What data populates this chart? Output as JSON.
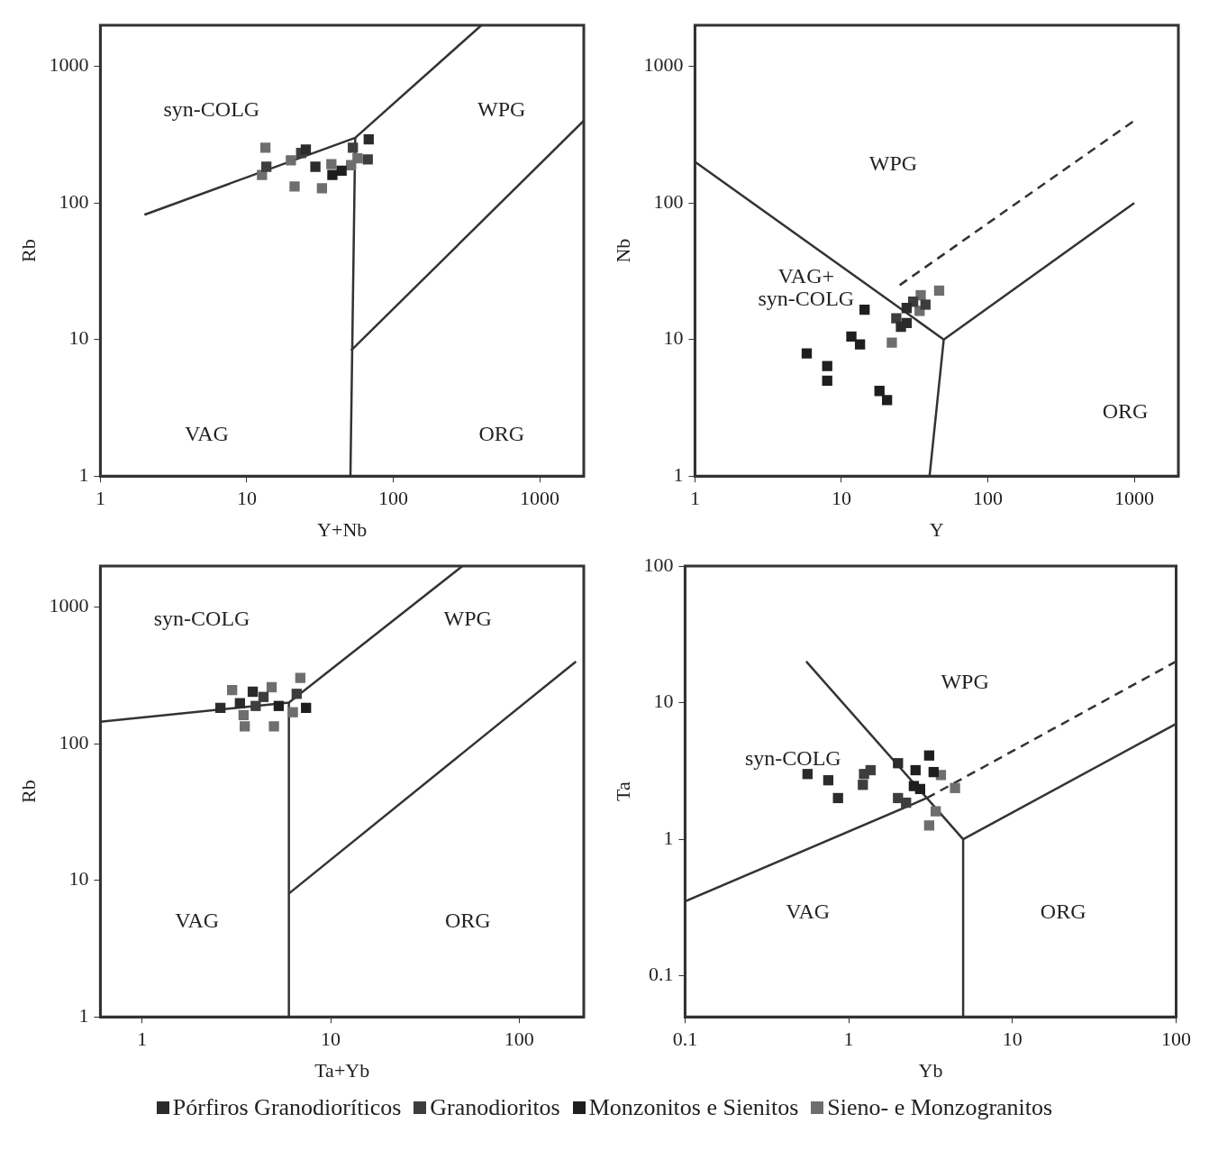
{
  "chart_data": [
    {
      "type": "scatter",
      "xlabel": "Y+Nb",
      "ylabel": "Rb",
      "log": "xy",
      "grid": false,
      "xlim": [
        1,
        2000
      ],
      "ylim": [
        1,
        2000
      ],
      "xticks": [
        1,
        10,
        100,
        1000
      ],
      "yticks": [
        1,
        10,
        100,
        1000
      ],
      "annotations": [
        "syn-COLG",
        "WPG",
        "VAG",
        "ORG"
      ],
      "series": [
        {
          "color": "#2b2b2b",
          "marker": "square",
          "x": [
            25.3,
            29.4,
            68
          ],
          "values": [
            246,
            184,
            292
          ]
        },
        {
          "color": "#3d3d3d",
          "marker": "square",
          "x": [
            13.6,
            23.5,
            53,
            67
          ],
          "values": [
            184,
            232,
            254,
            208
          ]
        },
        {
          "color": "#1e1e1e",
          "marker": "square",
          "x": [
            38.4,
            44.4
          ],
          "values": [
            160,
            172
          ]
        },
        {
          "color": "#6e6e6e",
          "marker": "square",
          "x": [
            13.4,
            12.7,
            20,
            21.2,
            32.6,
            37.8,
            51.5,
            57
          ],
          "values": [
            254,
            160,
            205,
            132,
            128,
            192,
            189,
            212
          ]
        },
        {
          "type": "line",
          "color": "#333333",
          "x": [
            2,
            55,
            400
          ],
          "values": [
            82,
            300,
            2000
          ]
        },
        {
          "type": "line",
          "color": "#333333",
          "x": [
            51,
            55
          ],
          "values": [
            1,
            300
          ]
        },
        {
          "type": "line",
          "color": "#333333",
          "x": [
            51.5,
            2000
          ],
          "values": [
            8.3,
            400
          ]
        }
      ]
    },
    {
      "type": "scatter",
      "xlabel": "Y",
      "ylabel": "Nb",
      "log": "xy",
      "grid": false,
      "xlim": [
        1,
        2000
      ],
      "ylim": [
        1,
        2000
      ],
      "xticks": [
        1,
        10,
        100,
        1000
      ],
      "yticks": [
        1,
        10,
        100,
        1000
      ],
      "annotations": [
        "WPG",
        "VAG+",
        "syn-COLG",
        "ORG"
      ],
      "series": [
        {
          "color": "#2b2b2b",
          "marker": "square",
          "x": [
            25.5,
            27.9,
            27.9
          ],
          "values": [
            12.4,
            17,
            13.2
          ]
        },
        {
          "color": "#3d3d3d",
          "marker": "square",
          "x": [
            23.7,
            30.9,
            37.5
          ],
          "values": [
            14.3,
            18.9,
            18
          ]
        },
        {
          "color": "#1e1e1e",
          "marker": "square",
          "x": [
            14.4,
            11.7,
            13.4,
            5.8,
            8.0,
            8.0,
            18.2,
            20.5
          ],
          "values": [
            16.5,
            10.5,
            9.2,
            7.9,
            6.4,
            5.0,
            4.2,
            3.6
          ]
        },
        {
          "color": "#6e6e6e",
          "marker": "square",
          "x": [
            22.1,
            34.8,
            34.2,
            46.5
          ],
          "values": [
            9.5,
            21.1,
            16.2,
            22.8
          ]
        },
        {
          "type": "line",
          "color": "#333333",
          "x": [
            1,
            50,
            1000
          ],
          "values": [
            200,
            10,
            100
          ]
        },
        {
          "type": "line",
          "color": "#333333",
          "x": [
            50,
            40
          ],
          "values": [
            10,
            1
          ]
        },
        {
          "type": "line",
          "color": "#333333",
          "line_style": "dashed",
          "x": [
            25,
            1000
          ],
          "values": [
            25,
            400
          ]
        }
      ]
    },
    {
      "type": "scatter",
      "xlabel": "Ta+Yb",
      "ylabel": "Rb",
      "log": "xy",
      "grid": false,
      "xlim": [
        0.6,
        220
      ],
      "ylim": [
        1,
        2000
      ],
      "xticks": [
        1,
        10,
        100
      ],
      "yticks": [
        1,
        10,
        100,
        1000
      ],
      "annotations": [
        "syn-COLG",
        "WPG",
        "VAG",
        "ORG"
      ],
      "series": [
        {
          "color": "#2b2b2b",
          "marker": "square",
          "x": [
            2.6,
            3.86,
            3.3
          ],
          "values": [
            183,
            240,
            198
          ]
        },
        {
          "color": "#3d3d3d",
          "marker": "square",
          "x": [
            4.0,
            4.4,
            6.6
          ],
          "values": [
            189,
            220,
            232
          ]
        },
        {
          "color": "#1e1e1e",
          "marker": "square",
          "x": [
            5.3,
            7.4
          ],
          "values": [
            189,
            183
          ]
        },
        {
          "color": "#6e6e6e",
          "marker": "square",
          "x": [
            3.0,
            3.45,
            3.5,
            4.86,
            5.0,
            6.3,
            6.9
          ],
          "values": [
            247,
            162,
            134,
            259,
            134,
            170,
            303
          ]
        },
        {
          "type": "line",
          "color": "#333333",
          "x": [
            0.6,
            6,
            50
          ],
          "values": [
            145,
            200,
            2000
          ]
        },
        {
          "type": "line",
          "color": "#333333",
          "x": [
            6,
            6
          ],
          "values": [
            1,
            200
          ]
        },
        {
          "type": "line",
          "color": "#333333",
          "x": [
            6,
            200
          ],
          "values": [
            8,
            400
          ]
        }
      ]
    },
    {
      "type": "scatter",
      "xlabel": "Yb",
      "ylabel": "Ta",
      "log": "xy",
      "grid": false,
      "legend": "bottom",
      "xlim": [
        0.1,
        100
      ],
      "ylim": [
        0.05,
        100
      ],
      "xticks": [
        0.1,
        1,
        10,
        100
      ],
      "yticks": [
        0.1,
        1,
        10,
        100
      ],
      "annotations": [
        "WPG",
        "syn-COLG",
        "VAG",
        "ORG"
      ],
      "series": [
        {
          "name": "Pórfiros Granodioríticos",
          "color": "#2b2b2b",
          "marker": "square",
          "x": [
            0.56,
            0.75,
            0.86,
            2.0
          ],
          "values": [
            3.0,
            2.7,
            2.0,
            3.6
          ]
        },
        {
          "name": "Granodioritos",
          "color": "#3d3d3d",
          "marker": "square",
          "x": [
            1.24,
            1.22,
            1.36,
            2.0,
            2.24
          ],
          "values": [
            3.0,
            2.5,
            3.2,
            2.0,
            1.85
          ]
        },
        {
          "name": "Monzonitos e Sienitos",
          "color": "#1e1e1e",
          "marker": "square",
          "x": [
            2.56,
            3.1,
            3.3,
            2.73,
            2.5
          ],
          "values": [
            3.2,
            4.1,
            3.1,
            2.33,
            2.45
          ]
        },
        {
          "name": "Sieno- e Monzogranitos",
          "color": "#6e6e6e",
          "marker": "square",
          "x": [
            3.66,
            4.46,
            3.4,
            3.1
          ],
          "values": [
            2.95,
            2.37,
            1.6,
            1.26
          ]
        },
        {
          "type": "line",
          "color": "#333333",
          "x": [
            0.1,
            3
          ],
          "values": [
            0.35,
            2
          ]
        },
        {
          "type": "line",
          "color": "#333333",
          "x": [
            0.55,
            3,
            5,
            5
          ],
          "values": [
            20,
            2,
            1,
            0.05
          ]
        },
        {
          "type": "line",
          "color": "#333333",
          "x": [
            5,
            100
          ],
          "values": [
            1,
            7
          ]
        },
        {
          "type": "line",
          "color": "#333333",
          "line_style": "dashed",
          "x": [
            3,
            100
          ],
          "values": [
            2,
            20
          ]
        }
      ]
    }
  ]
}
